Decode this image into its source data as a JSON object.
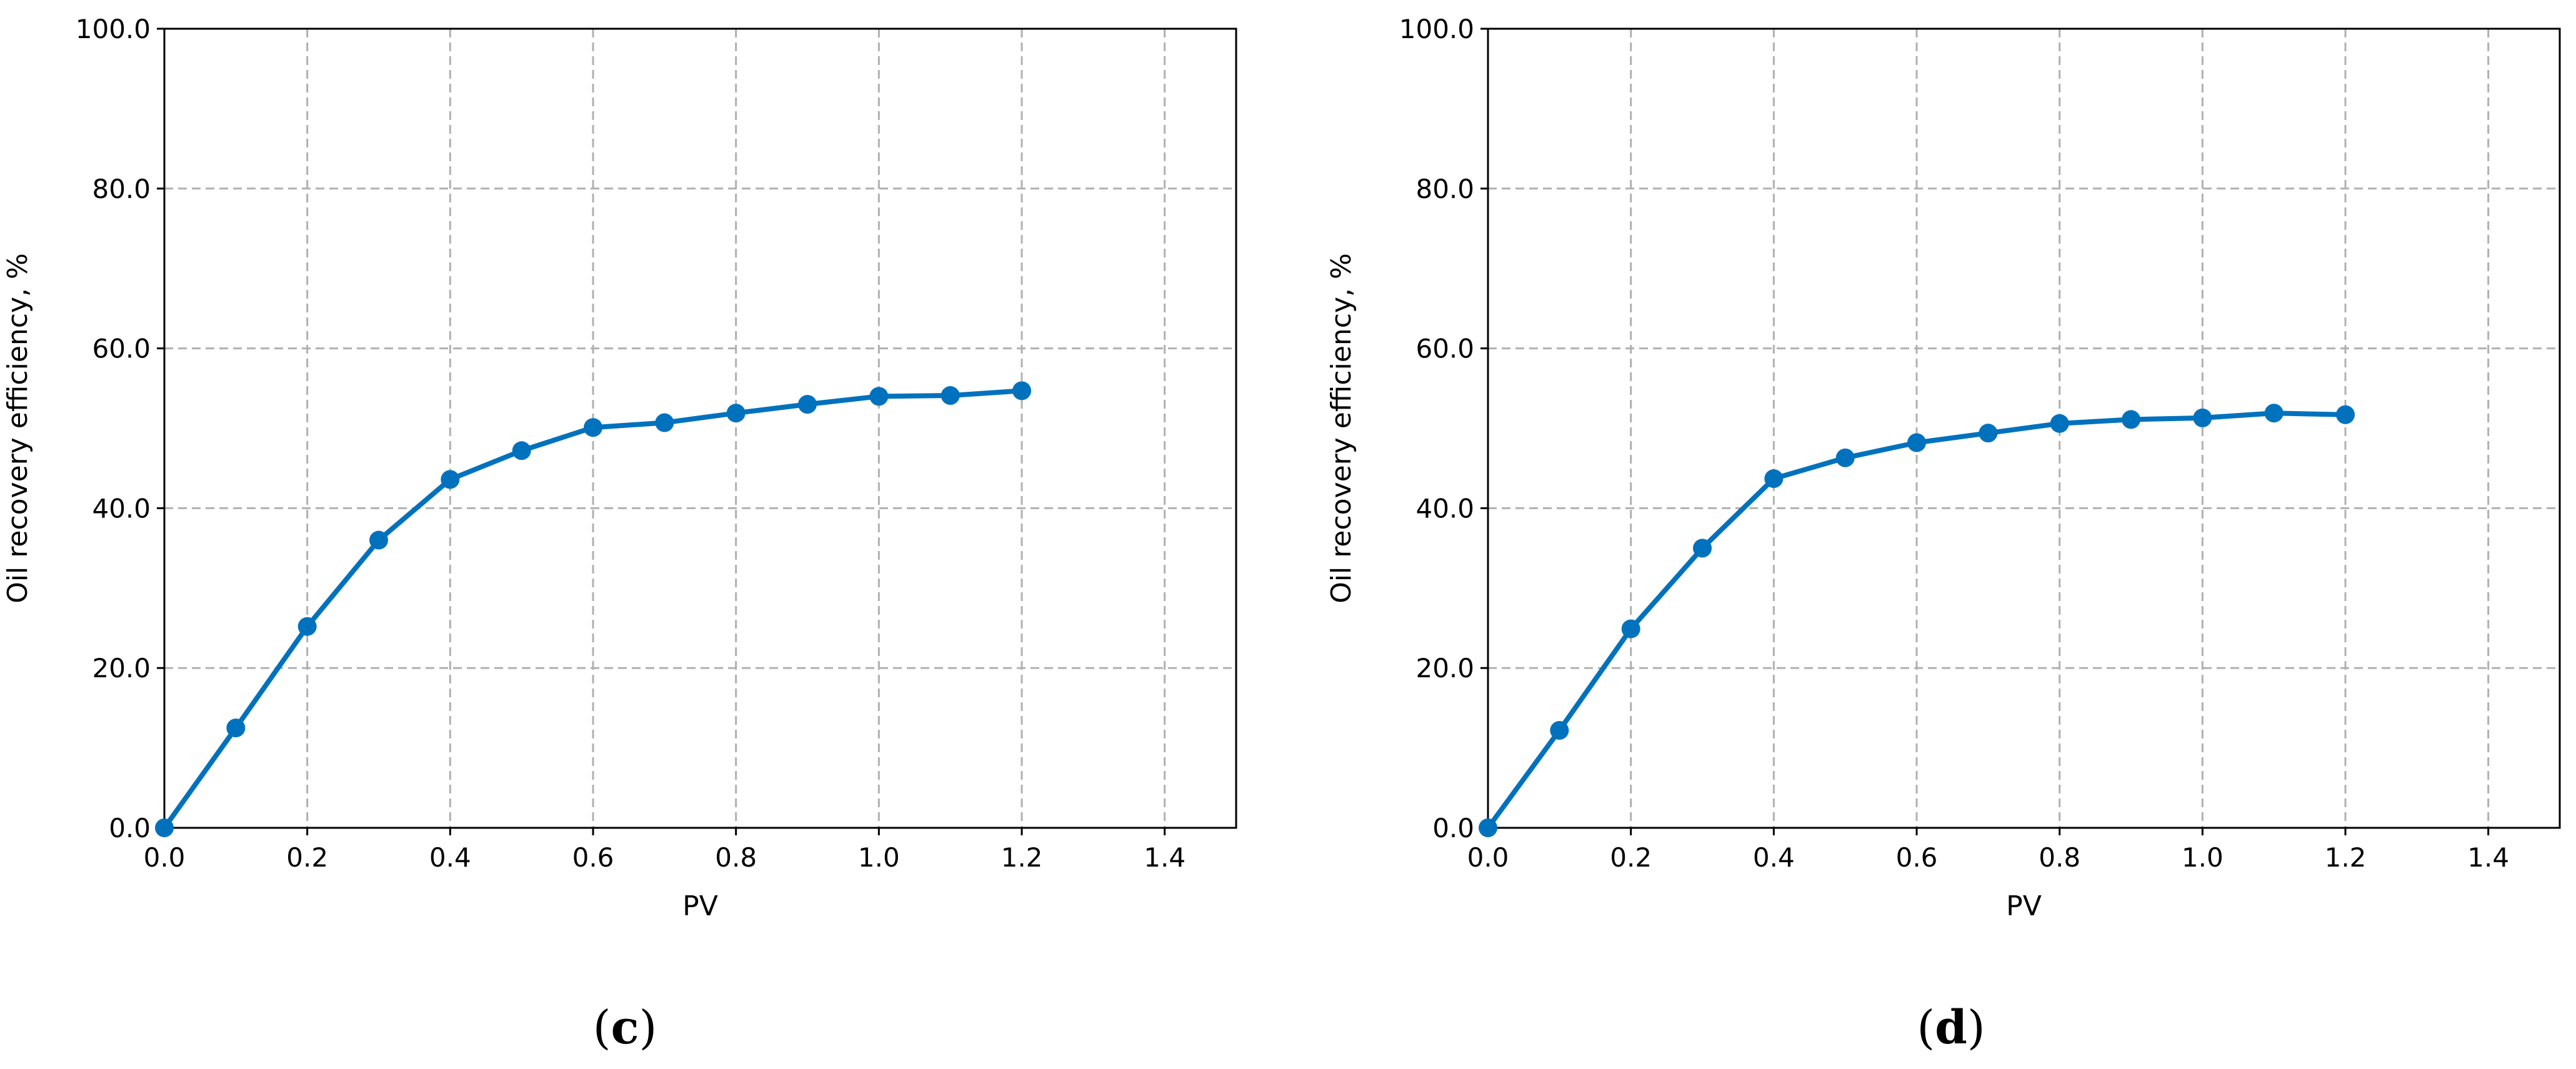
{
  "colors": {
    "series": "#0072BD",
    "grid": "#b0b0b0",
    "frame": "#000000"
  },
  "chart_data": [
    {
      "type": "line",
      "panel_label": {
        "open": "(",
        "letter": "c",
        "close": ")"
      },
      "xlabel": "PV",
      "ylabel": "Oil recovery efficiency, %",
      "xlim": [
        0.0,
        1.5
      ],
      "ylim": [
        0.0,
        100.0
      ],
      "xticks": [
        "0.0",
        "0.2",
        "0.4",
        "0.6",
        "0.8",
        "1.0",
        "1.2",
        "1.4"
      ],
      "yticks": [
        "0.0",
        "20.0",
        "40.0",
        "60.0",
        "80.0",
        "100.0"
      ],
      "grid": true,
      "marker": "circle",
      "x": [
        0.0,
        0.1,
        0.2,
        0.3,
        0.4,
        0.5,
        0.6,
        0.7,
        0.8,
        0.9,
        1.0,
        1.1,
        1.2
      ],
      "y": [
        0.0,
        12.5,
        25.2,
        36.0,
        43.6,
        47.2,
        50.1,
        50.7,
        51.9,
        53.0,
        54.0,
        54.1,
        54.7
      ]
    },
    {
      "type": "line",
      "panel_label": {
        "open": "(",
        "letter": "d",
        "close": ")"
      },
      "xlabel": "PV",
      "ylabel": "Oil recovery efficiency, %",
      "xlim": [
        0.0,
        1.5
      ],
      "ylim": [
        0.0,
        100.0
      ],
      "xticks": [
        "0.0",
        "0.2",
        "0.4",
        "0.6",
        "0.8",
        "1.0",
        "1.2",
        "1.4"
      ],
      "yticks": [
        "0.0",
        "20.0",
        "40.0",
        "60.0",
        "80.0",
        "100.0"
      ],
      "grid": true,
      "marker": "circle",
      "x": [
        0.0,
        0.1,
        0.2,
        0.3,
        0.4,
        0.5,
        0.6,
        0.7,
        0.8,
        0.9,
        1.0,
        1.1,
        1.2
      ],
      "y": [
        0.0,
        12.2,
        24.9,
        35.0,
        43.7,
        46.3,
        48.2,
        49.4,
        50.6,
        51.1,
        51.3,
        51.9,
        51.7
      ]
    }
  ]
}
